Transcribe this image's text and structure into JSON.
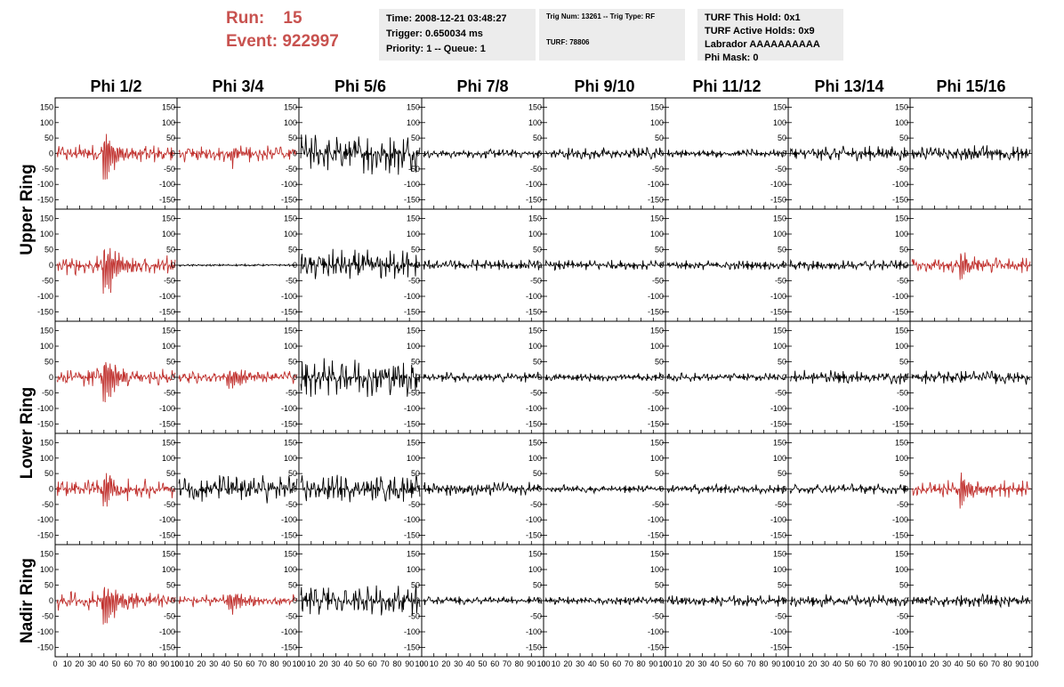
{
  "header": {
    "run_label": "Run:",
    "run_value": "15",
    "event_label": "Event:",
    "event_value": "922997"
  },
  "info": {
    "time": "Time: 2008-12-21 03:48:27",
    "trigger": "Trigger: 0.650034 ms",
    "priority": "Priority: 1 -- Queue: 1",
    "trig_num": "Trig Num: 13261 -- Trig Type: RF",
    "turf": "TURF: 78806",
    "turf_hold": "TURF This Hold: 0x1",
    "turf_active": "TURF Active Holds: 0x9",
    "labrador": "Labrador AAAAAAAAAA",
    "phi_mask": "Phi Mask: 0"
  },
  "columns": [
    "Phi 1/2",
    "Phi 3/4",
    "Phi 5/6",
    "Phi 7/8",
    "Phi 9/10",
    "Phi 11/12",
    "Phi 13/14",
    "Phi 15/16"
  ],
  "ring_labels": [
    "Upper Ring",
    "Lower Ring",
    "Nadir Ring"
  ],
  "y_ticks": [
    "150",
    "100",
    "50",
    "0",
    "-50",
    "-100",
    "-150"
  ],
  "x_ticks": [
    "0",
    "10",
    "20",
    "30",
    "40",
    "50",
    "60",
    "70",
    "80",
    "90",
    "100"
  ],
  "colors": {
    "triggered": "#c0302d",
    "normal": "#000000",
    "header_accent": "#c8524f"
  },
  "chart_data": {
    "type": "line",
    "xlim": [
      0,
      100
    ],
    "ylim": [
      -180,
      180
    ],
    "panels": [
      [
        {
          "color": "red",
          "amp": 28,
          "burst": 95,
          "burst_at": 40
        },
        {
          "color": "red",
          "amp": 24,
          "burst": 28,
          "burst_at": 45
        },
        {
          "color": "black",
          "amp": 62,
          "burst": 0,
          "burst_at": 50
        },
        {
          "color": "black",
          "amp": 13,
          "burst": 0,
          "burst_at": 50
        },
        {
          "color": "black",
          "amp": 18,
          "burst": 0,
          "burst_at": 50
        },
        {
          "color": "black",
          "amp": 12,
          "burst": 0,
          "burst_at": 50
        },
        {
          "color": "black",
          "amp": 22,
          "burst": 0,
          "burst_at": 50
        },
        {
          "color": "black",
          "amp": 22,
          "burst": 22,
          "burst_at": 48
        }
      ],
      [
        {
          "color": "red",
          "amp": 28,
          "burst": 115,
          "burst_at": 40
        },
        {
          "color": "black",
          "amp": 3,
          "burst": 0,
          "burst_at": 50
        },
        {
          "color": "black",
          "amp": 45,
          "burst": 0,
          "burst_at": 50
        },
        {
          "color": "black",
          "amp": 16,
          "burst": 0,
          "burst_at": 50
        },
        {
          "color": "black",
          "amp": 15,
          "burst": 0,
          "burst_at": 50
        },
        {
          "color": "black",
          "amp": 14,
          "burst": 0,
          "burst_at": 50
        },
        {
          "color": "black",
          "amp": 16,
          "burst": 0,
          "burst_at": 50
        },
        {
          "color": "red",
          "amp": 22,
          "burst": 45,
          "burst_at": 42
        }
      ],
      [
        {
          "color": "red",
          "amp": 28,
          "burst": 90,
          "burst_at": 40
        },
        {
          "color": "red",
          "amp": 18,
          "burst": 45,
          "burst_at": 42
        },
        {
          "color": "black",
          "amp": 55,
          "burst": 0,
          "burst_at": 50
        },
        {
          "color": "black",
          "amp": 15,
          "burst": 0,
          "burst_at": 50
        },
        {
          "color": "black",
          "amp": 12,
          "burst": 0,
          "burst_at": 50
        },
        {
          "color": "black",
          "amp": 13,
          "burst": 0,
          "burst_at": 50
        },
        {
          "color": "black",
          "amp": 20,
          "burst": 0,
          "burst_at": 50
        },
        {
          "color": "black",
          "amp": 20,
          "burst": 0,
          "burst_at": 50
        }
      ],
      [
        {
          "color": "red",
          "amp": 28,
          "burst": 70,
          "burst_at": 40
        },
        {
          "color": "black",
          "amp": 40,
          "burst": 0,
          "burst_at": 50
        },
        {
          "color": "black",
          "amp": 40,
          "burst": 0,
          "burst_at": 50
        },
        {
          "color": "black",
          "amp": 20,
          "burst": 0,
          "burst_at": 50
        },
        {
          "color": "black",
          "amp": 12,
          "burst": 0,
          "burst_at": 50
        },
        {
          "color": "black",
          "amp": 14,
          "burst": 0,
          "burst_at": 50
        },
        {
          "color": "black",
          "amp": 15,
          "burst": 0,
          "burst_at": 50
        },
        {
          "color": "red",
          "amp": 25,
          "burst": 65,
          "burst_at": 42
        }
      ],
      [
        {
          "color": "red",
          "amp": 28,
          "burst": 110,
          "burst_at": 40
        },
        {
          "color": "red",
          "amp": 18,
          "burst": 40,
          "burst_at": 42
        },
        {
          "color": "black",
          "amp": 45,
          "burst": 0,
          "burst_at": 50
        },
        {
          "color": "black",
          "amp": 12,
          "burst": 0,
          "burst_at": 50
        },
        {
          "color": "black",
          "amp": 12,
          "burst": 0,
          "burst_at": 50
        },
        {
          "color": "black",
          "amp": 16,
          "burst": 0,
          "burst_at": 50
        },
        {
          "color": "black",
          "amp": 18,
          "burst": 0,
          "burst_at": 50
        },
        {
          "color": "black",
          "amp": 18,
          "burst": 0,
          "burst_at": 50
        }
      ]
    ]
  }
}
